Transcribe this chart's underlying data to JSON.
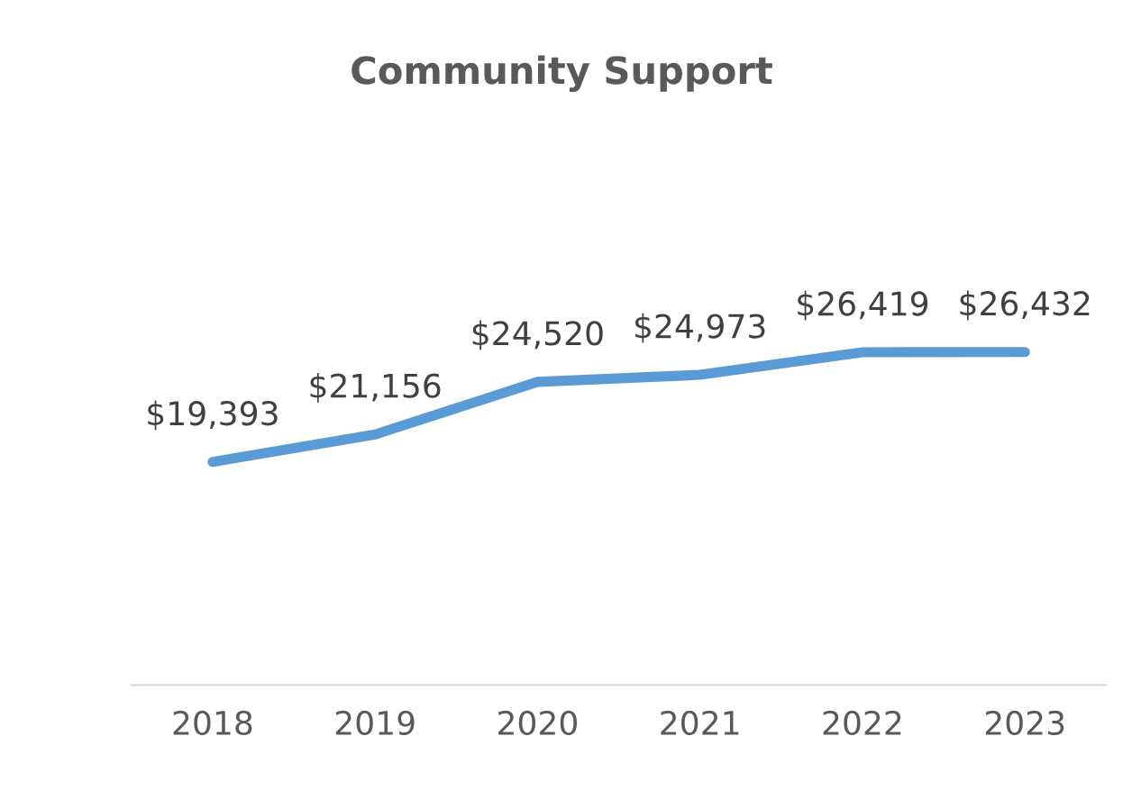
{
  "chart_data": {
    "type": "line",
    "title": "Community Support",
    "categories": [
      "2018",
      "2019",
      "2020",
      "2021",
      "2022",
      "2023"
    ],
    "values": [
      19393,
      21156,
      24520,
      24973,
      26419,
      26432
    ],
    "value_labels": [
      "$19,393",
      "$21,156",
      "$24,520",
      "$24,973",
      "$26,419",
      "$26,432"
    ],
    "color": "#5b9bd5",
    "marker": "none",
    "grid": false,
    "legend": false
  }
}
